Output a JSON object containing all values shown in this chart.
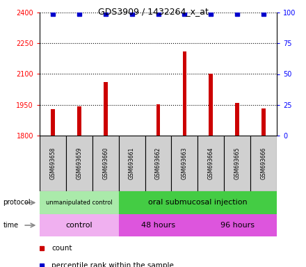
{
  "title": "GDS3909 / 1432264_x_at",
  "samples": [
    "GSM693658",
    "GSM693659",
    "GSM693660",
    "GSM693661",
    "GSM693662",
    "GSM693663",
    "GSM693664",
    "GSM693665",
    "GSM693666"
  ],
  "counts": [
    1930,
    1942,
    2060,
    1801,
    1952,
    2210,
    2100,
    1960,
    1932
  ],
  "percentile_ranks": [
    99,
    99,
    99,
    99,
    99,
    99,
    99,
    99,
    99
  ],
  "ylim_left": [
    1800,
    2400
  ],
  "ylim_right": [
    0,
    100
  ],
  "yticks_left": [
    1800,
    1950,
    2100,
    2250,
    2400
  ],
  "yticks_right": [
    0,
    25,
    50,
    75,
    100
  ],
  "bar_color": "#cc0000",
  "dot_color": "#0000cc",
  "protocol_groups": [
    {
      "label": "unmanipulated control",
      "start": 0,
      "end": 3,
      "color": "#aaeaaa"
    },
    {
      "label": "oral submucosal injection",
      "start": 3,
      "end": 9,
      "color": "#44cc44"
    }
  ],
  "time_groups": [
    {
      "label": "control",
      "start": 0,
      "end": 3,
      "color": "#f0b0f0"
    },
    {
      "label": "48 hours",
      "start": 3,
      "end": 6,
      "color": "#dd55dd"
    },
    {
      "label": "96 hours",
      "start": 6,
      "end": 9,
      "color": "#dd55dd"
    }
  ],
  "sample_box_color": "#d0d0d0",
  "legend_count_color": "#cc0000",
  "legend_percentile_color": "#0000cc",
  "fig_width": 4.4,
  "fig_height": 3.84,
  "dpi": 100
}
